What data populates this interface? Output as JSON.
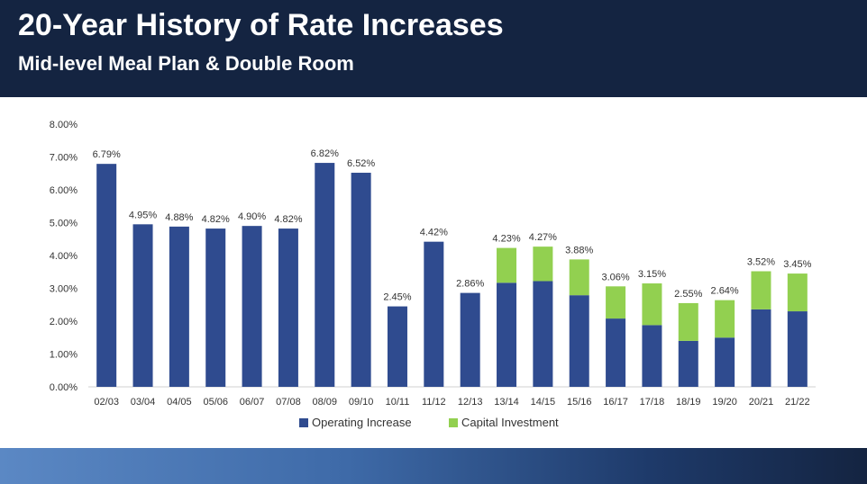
{
  "header": {
    "title": "20-Year History of Rate Increases",
    "subtitle": "Mid-level Meal Plan & Double Room"
  },
  "colors": {
    "header_bg": "#142441",
    "operating": "#2f4b8f",
    "capital": "#92d050"
  },
  "chart_data": {
    "type": "bar",
    "stacked": true,
    "categories": [
      "02/03",
      "03/04",
      "04/05",
      "05/06",
      "06/07",
      "07/08",
      "08/09",
      "09/10",
      "10/11",
      "11/12",
      "12/13",
      "13/14",
      "14/15",
      "15/16",
      "16/17",
      "17/18",
      "18/19",
      "19/20",
      "20/21",
      "21/22"
    ],
    "series": [
      {
        "name": "Operating Increase",
        "values": [
          6.79,
          4.95,
          4.88,
          4.82,
          4.9,
          4.82,
          6.82,
          6.52,
          2.45,
          4.42,
          2.86,
          3.17,
          3.22,
          2.79,
          2.08,
          1.88,
          1.4,
          1.5,
          2.36,
          2.3
        ]
      },
      {
        "name": "Capital Investment",
        "values": [
          0,
          0,
          0,
          0,
          0,
          0,
          0,
          0,
          0,
          0,
          0,
          1.06,
          1.05,
          1.09,
          0.98,
          1.27,
          1.15,
          1.14,
          1.16,
          1.15
        ]
      }
    ],
    "totals_labels": [
      "6.79%",
      "4.95%",
      "4.88%",
      "4.82%",
      "4.90%",
      "4.82%",
      "6.82%",
      "6.52%",
      "2.45%",
      "4.42%",
      "2.86%",
      "4.23%",
      "4.27%",
      "3.88%",
      "3.06%",
      "3.15%",
      "2.55%",
      "2.64%",
      "3.52%",
      "3.45%"
    ],
    "y_ticks": [
      "0.00%",
      "1.00%",
      "2.00%",
      "3.00%",
      "4.00%",
      "5.00%",
      "6.00%",
      "7.00%",
      "8.00%"
    ],
    "ylim": [
      0,
      8
    ],
    "grid": false,
    "legend_position": "bottom"
  }
}
